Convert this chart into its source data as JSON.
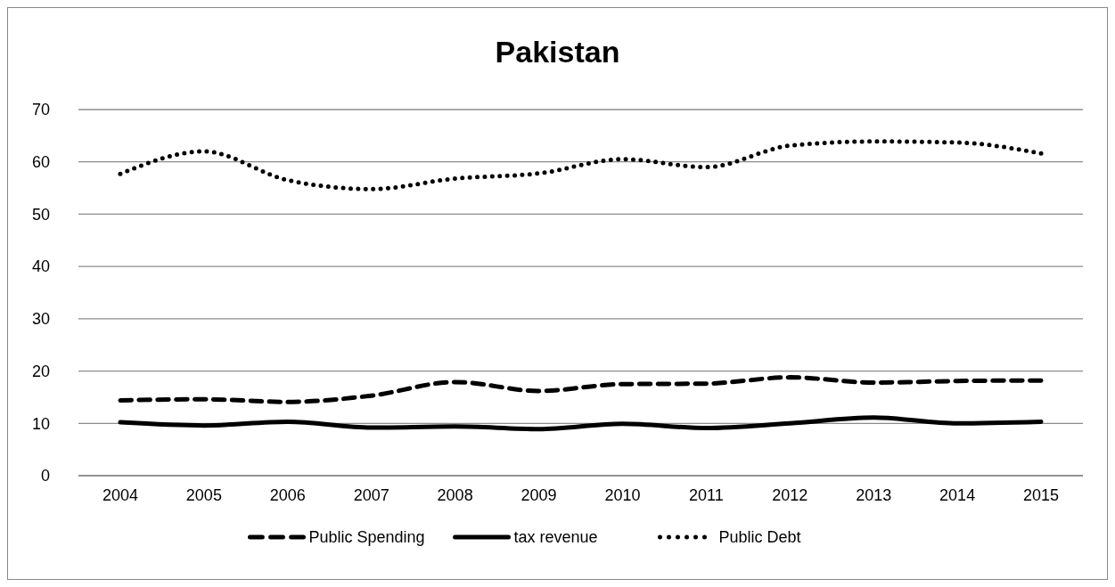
{
  "chart_data": {
    "type": "line",
    "title": "Pakistan",
    "categories": [
      "2004",
      "2005",
      "2006",
      "2007",
      "2008",
      "2009",
      "2010",
      "2011",
      "2012",
      "2013",
      "2014",
      "2015"
    ],
    "series": [
      {
        "name": "Public Spending",
        "color": "#000000",
        "line_style": "dashed",
        "values": [
          14.4,
          14.6,
          14.1,
          15.3,
          17.9,
          16.2,
          17.5,
          17.6,
          18.8,
          17.8,
          18.1,
          18.2
        ]
      },
      {
        "name": "tax revenue",
        "color": "#000000",
        "line_style": "solid",
        "values": [
          10.2,
          9.6,
          10.3,
          9.2,
          9.4,
          8.9,
          9.9,
          9.1,
          10.0,
          11.1,
          10.0,
          10.3
        ]
      },
      {
        "name": "Public Debt",
        "color": "#000000",
        "line_style": "dotted",
        "values": [
          57.7,
          62.0,
          56.5,
          54.8,
          56.8,
          57.8,
          60.5,
          59.0,
          63.1,
          63.9,
          63.7,
          61.6
        ]
      }
    ],
    "ylim": [
      0,
      70
    ],
    "yticks": [
      0,
      10,
      20,
      30,
      40,
      50,
      60,
      70
    ],
    "grid": "y",
    "legend": "bottom",
    "marker": "none"
  }
}
